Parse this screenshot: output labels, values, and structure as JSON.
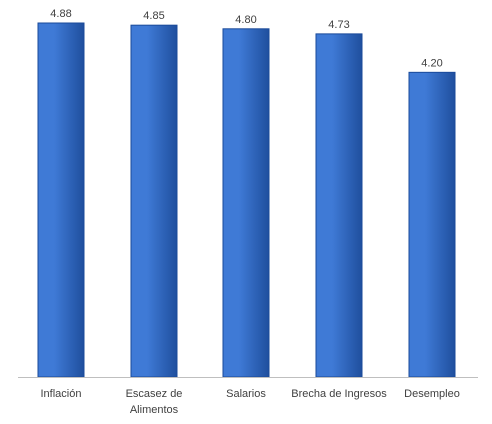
{
  "chart_data": {
    "type": "bar",
    "categories": [
      [
        "Inflación"
      ],
      [
        "Escasez de",
        "Alimentos"
      ],
      [
        "Salarios"
      ],
      [
        "Brecha de Ingresos"
      ],
      [
        "Desempleo"
      ]
    ],
    "values": [
      4.88,
      4.85,
      4.8,
      4.73,
      4.2
    ],
    "value_labels": [
      "4.88",
      "4.85",
      "4.80",
      "4.73",
      "4.20"
    ],
    "ylim": [
      0,
      4.88
    ],
    "grid": false,
    "legend": "none",
    "colors": {
      "bar_top": "#3f7ad6",
      "bar_bottom": "#1f4f9e",
      "bar_edge": "#1a4a9a",
      "axis": "#bfbfbf",
      "text": "#404040"
    }
  }
}
